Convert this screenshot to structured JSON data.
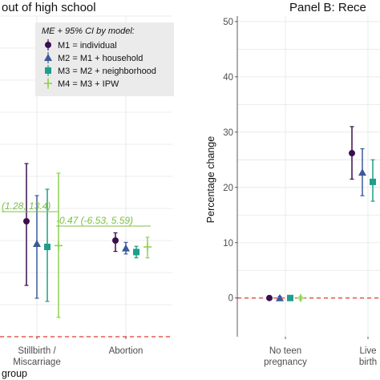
{
  "chart_data": [
    {
      "panel": "left",
      "type": "scatter",
      "title": "out of high school",
      "xlabel": "group",
      "categories": [
        "Stillbirth /\nMiscarriage",
        "Abortion"
      ],
      "series": [
        {
          "name": "M1 = individual",
          "values": [
            1.8,
            1.5
          ],
          "lower": [
            0.8,
            1.33
          ],
          "upper": [
            2.7,
            1.62
          ]
        },
        {
          "name": "M2 = M1 + household",
          "values": [
            1.45,
            1.38
          ],
          "lower": [
            0.6,
            1.29
          ],
          "upper": [
            2.2,
            1.47
          ]
        },
        {
          "name": "M3 = M2 + neighborhood",
          "values": [
            1.4,
            1.32
          ],
          "lower": [
            0.55,
            1.23
          ],
          "upper": [
            2.3,
            1.41
          ]
        },
        {
          "name": "M4 = M3 + IPW",
          "values": [
            1.42,
            1.4
          ],
          "lower": [
            0.3,
            1.23
          ],
          "upper": [
            2.55,
            1.55
          ]
        }
      ],
      "annotations": [
        "(1.28, 13.4)",
        "-0.47 (-6.53, 5.59)"
      ],
      "ylim": [
        0,
        5
      ],
      "reference_line": 0,
      "legend_title": "ME + 95% CI by model:",
      "legend_position": "top-right",
      "grid": true
    },
    {
      "panel": "right",
      "type": "scatter",
      "title": "Panel B: Rece",
      "ylabel": "Percentage change",
      "categories": [
        "No teen\npregnancy",
        "Live\nbirth"
      ],
      "series": [
        {
          "name": "M1 = individual",
          "values": [
            0,
            26.2
          ],
          "lower": [
            -0.3,
            21.5
          ],
          "upper": [
            0.3,
            31.0
          ]
        },
        {
          "name": "M2 = M1 + household",
          "values": [
            0,
            22.7
          ],
          "lower": [
            -0.3,
            18.5
          ],
          "upper": [
            0.3,
            27.0
          ]
        },
        {
          "name": "M3 = M2 + neighborhood",
          "values": [
            0,
            21.0
          ],
          "lower": [
            -0.3,
            17.5
          ],
          "upper": [
            0.3,
            25.0
          ]
        },
        {
          "name": "M4 = M3 + IPW",
          "values": [
            0,
            null
          ],
          "lower": [
            -0.3,
            null
          ],
          "upper": [
            0.3,
            null
          ]
        }
      ],
      "yticks": [
        0,
        10,
        20,
        30,
        40,
        50
      ],
      "ylim": [
        -7,
        51
      ],
      "reference_line": 0,
      "grid": true
    }
  ],
  "colors": {
    "m1": "#3b0f4f",
    "m2": "#3b5a9a",
    "m3": "#1f9e89",
    "m4": "#8fd14f",
    "reference": "#e03a2f",
    "grid": "#e6e6e6",
    "legend_bg": "#ebebeb"
  },
  "icons": [
    "circle-marker",
    "triangle-marker",
    "square-marker",
    "cross-marker"
  ]
}
